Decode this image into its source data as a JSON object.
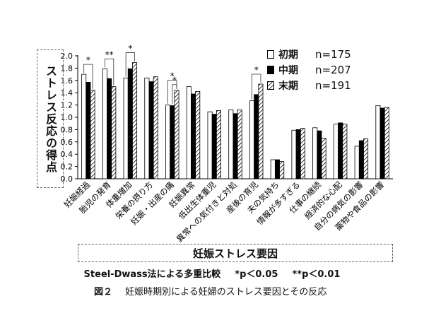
{
  "chart_data": {
    "type": "bar",
    "ylabel": "ストレス反応の得点",
    "xlabel": "妊娠ストレス要因",
    "ylim": [
      0,
      2.0
    ],
    "yticks": [
      "0.0",
      "0.2",
      "0.4",
      "0.6",
      "0.8",
      "1.0",
      "1.2",
      "1.4",
      "1.6",
      "1.8",
      "2.0"
    ],
    "categories": [
      "妊娠経過",
      "胎児の発育",
      "体重増加",
      "栄養の摂り方",
      "妊娠・出産の痛",
      "妊娠異常",
      "低出生体重児",
      "異常への気付きと対処",
      "産後の育児",
      "夫の気持ち",
      "情報が多すぎる",
      "仕事の継続",
      "経済的な心配",
      "自分の病気の影響",
      "薬物や食品の影響"
    ],
    "series": [
      {
        "name": "初期",
        "n": "n=175",
        "values": [
          1.7,
          1.79,
          1.64,
          1.64,
          1.2,
          1.5,
          1.09,
          1.12,
          1.27,
          0.31,
          0.79,
          0.83,
          0.89,
          0.53,
          1.19
        ]
      },
      {
        "name": "中期",
        "n": "n=207",
        "values": [
          1.57,
          1.63,
          1.79,
          1.58,
          1.19,
          1.38,
          1.05,
          1.06,
          1.37,
          0.31,
          0.8,
          0.78,
          0.91,
          0.62,
          1.15
        ]
      },
      {
        "name": "末期",
        "n": "n=191",
        "values": [
          1.44,
          1.5,
          1.89,
          1.66,
          1.44,
          1.42,
          1.11,
          1.12,
          1.54,
          0.28,
          0.82,
          0.66,
          0.89,
          0.65,
          1.16
        ]
      }
    ],
    "significance": [
      {
        "category_index": 0,
        "pair": "初期-末期",
        "mark": "*"
      },
      {
        "category_index": 1,
        "pair": "初期-末期",
        "mark": "**"
      },
      {
        "category_index": 2,
        "pair": "初期-末期",
        "mark": "*"
      },
      {
        "category_index": 4,
        "pair": "初期-末期",
        "mark": "*"
      },
      {
        "category_index": 4,
        "pair": "中期-末期",
        "mark": "*"
      },
      {
        "category_index": 8,
        "pair": "初期-末期",
        "mark": "*"
      }
    ],
    "legend_position": "top-right",
    "grid": false
  },
  "legend": {
    "items": [
      {
        "name": "初期",
        "n": "n=175",
        "color": "#ffffff"
      },
      {
        "name": "中期",
        "n": "n=207",
        "color": "#000000"
      },
      {
        "name": "末期",
        "n": "n=191",
        "color": "hatched"
      }
    ]
  },
  "note": {
    "method": "Steel-Dwass法による多重比較",
    "p1": "*p＜0.05",
    "p2": "**p＜0.01"
  },
  "caption": {
    "fig": "図２",
    "text": "妊娠時期別による妊婦のストレス要因とその反応"
  }
}
